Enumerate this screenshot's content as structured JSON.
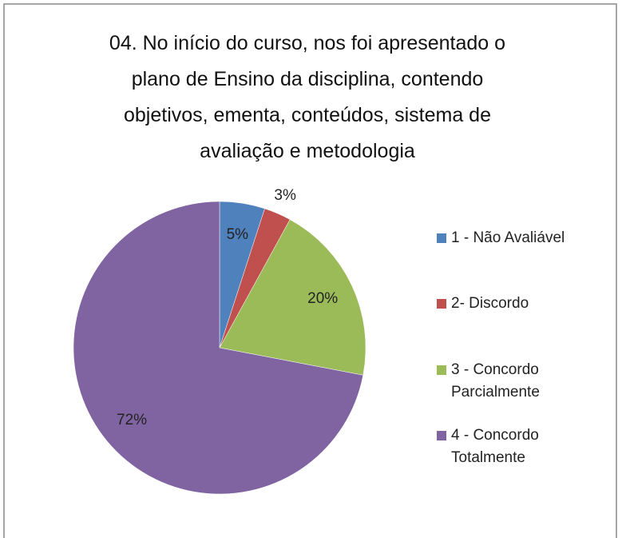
{
  "chart_data": {
    "type": "pie",
    "title": "04. No início do curso, nos foi apresentado o plano de Ensino da disciplina, contendo objetivos, ementa, conteúdos, sistema de avaliação e metodologia",
    "categories": [
      "1 -  Não Avaliável",
      "2- Discordo",
      "3 - Concordo Parcialmente",
      "4 - Concordo Totalmente"
    ],
    "values": [
      5,
      3,
      20,
      72
    ],
    "value_labels": [
      "5%",
      "3%",
      "20%",
      "72%"
    ],
    "colors": [
      "#4f81bd",
      "#c0504d",
      "#9bbb59",
      "#8064a2"
    ],
    "legend": "right"
  }
}
